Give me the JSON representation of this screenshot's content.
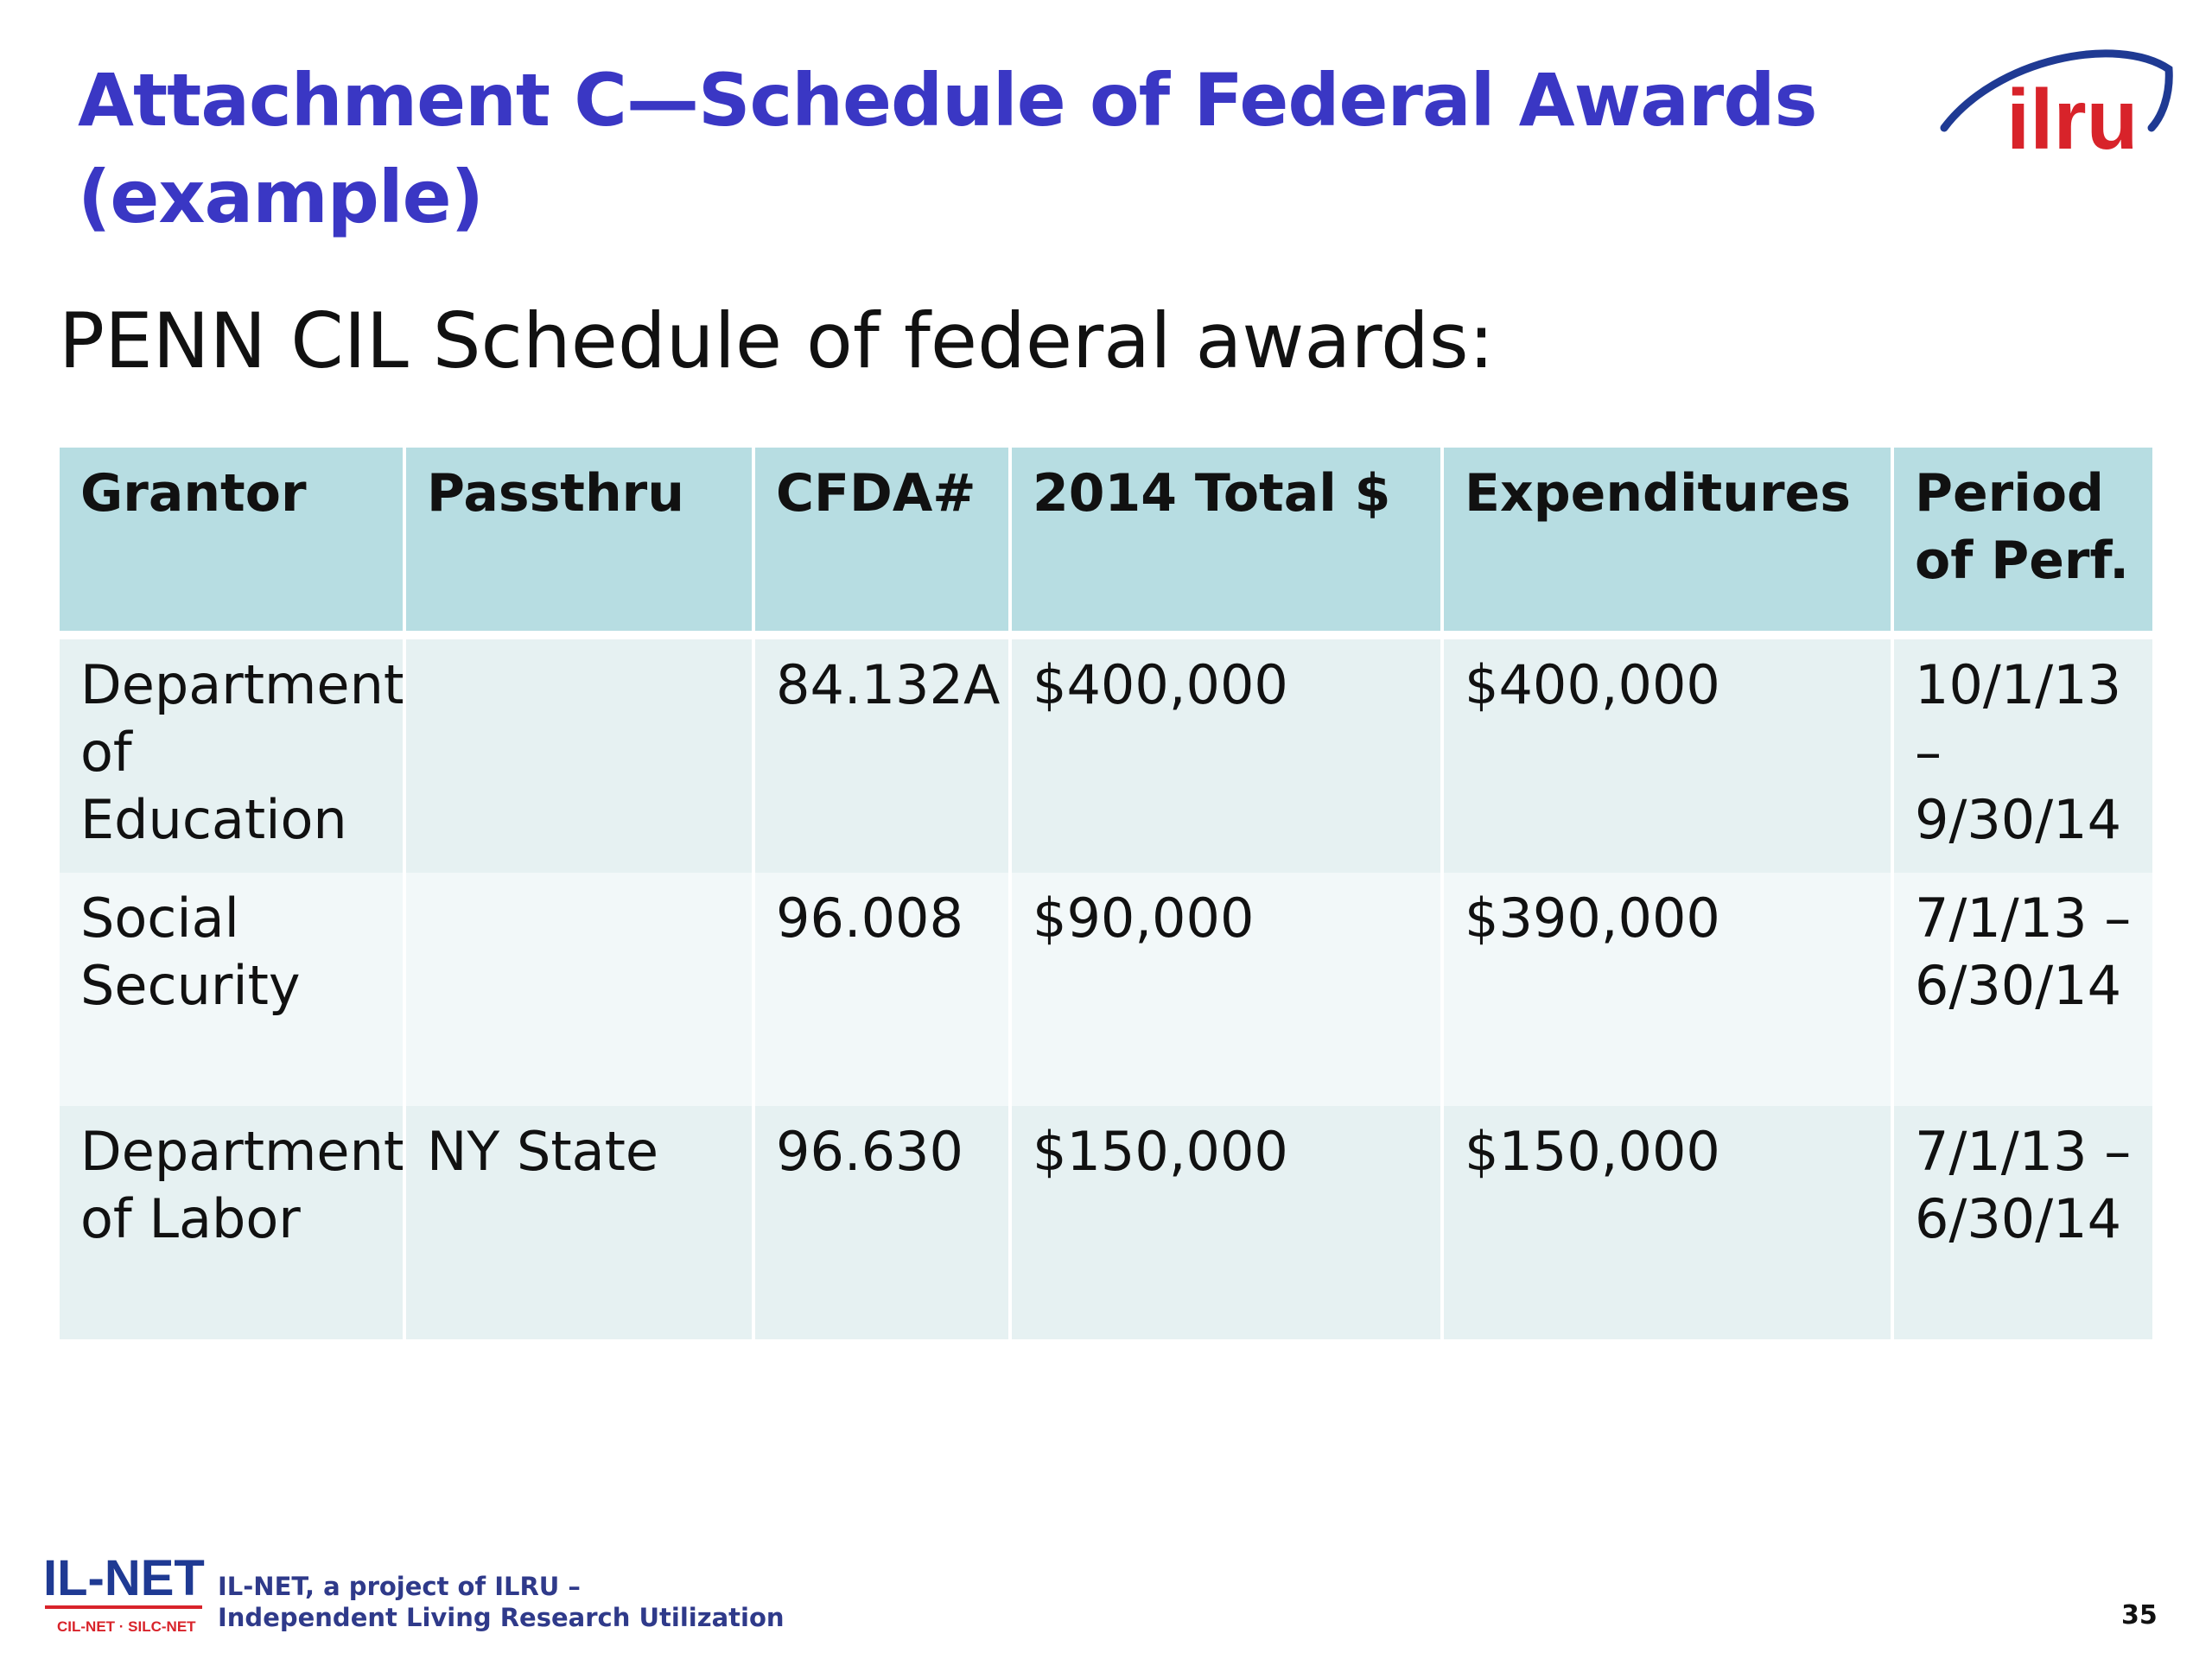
{
  "slide": {
    "title": "Attachment C—Schedule of Federal Awards (example)",
    "subtitle": "PENN CIL Schedule of federal awards:",
    "page_number": "35"
  },
  "logo": {
    "text": "ilru"
  },
  "table": {
    "headers": [
      "Grantor",
      "Passthru",
      "CFDA#",
      "2014 Total $",
      "Expenditures",
      "Period of Perf."
    ],
    "rows": [
      [
        "Department of Education",
        "",
        "84.132A",
        "$400,000",
        "$400,000",
        "10/1/13 – 9/30/14"
      ],
      [
        "Social Security",
        "",
        "96.008",
        "$90,000",
        "$390,000",
        "7/1/13 – 6/30/14"
      ],
      [
        "Department of Labor",
        "NY State",
        "96.630",
        "$150,000",
        "$150,000",
        "7/1/13 – 6/30/14"
      ]
    ]
  },
  "footer": {
    "logo_main": "IL-NET",
    "logo_sub": "CIL-NET · SILC-NET",
    "line1": "IL-NET, a project of ILRU –",
    "line2": "Independent Living Research Utilization"
  },
  "colors": {
    "title": "#3a37c4",
    "header_bg": "#b7dde2",
    "row_bg_a": "#e6f1f2",
    "row_bg_b": "#f2f8f9",
    "logo_red": "#d8232a",
    "logo_blue": "#1f3a93"
  }
}
